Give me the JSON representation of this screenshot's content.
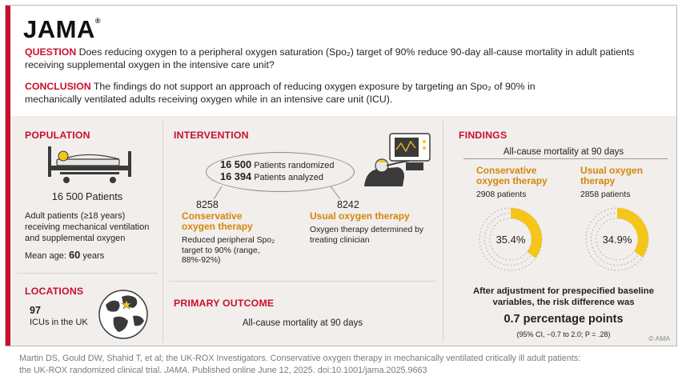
{
  "brand": {
    "logo": "JAMA",
    "trademark": "®"
  },
  "question": {
    "label": "QUESTION",
    "text": "Does reducing oxygen to a peripheral oxygen saturation (Spo₂) target of 90% reduce 90-day all-cause mortality in adult patients receiving supplemental oxygen in the intensive care unit?"
  },
  "conclusion": {
    "label": "CONCLUSION",
    "text": "The findings do not support an approach of reducing oxygen exposure by targeting an Spo₂ of 90% in mechanically ventilated adults receiving oxygen while in an intensive care unit (ICU)."
  },
  "population": {
    "heading": "POPULATION",
    "count": "16 500",
    "count_unit": "Patients",
    "description": "Adult patients (≥18 years) receiving mechanical ventilation and supplemental oxygen",
    "mean_age_label": "Mean age:",
    "mean_age_value": "60",
    "mean_age_unit": "years"
  },
  "locations": {
    "heading": "LOCATIONS",
    "count": "97",
    "text": "ICUs in the UK"
  },
  "intervention": {
    "heading": "INTERVENTION",
    "randomized_count": "16 500",
    "randomized_label": "Patients randomized",
    "analyzed_count": "16 394",
    "analyzed_label": "Patients analyzed",
    "conservative": {
      "count": "8258",
      "name": "Conservative oxygen therapy",
      "desc": "Reduced peripheral Spo₂ target to 90% (range, 88%-92%)"
    },
    "usual": {
      "count": "8242",
      "name": "Usual oxygen therapy",
      "desc": "Oxygen therapy determined by treating clinician"
    }
  },
  "primary_outcome": {
    "heading": "PRIMARY OUTCOME",
    "text": "All-cause mortality at 90 days"
  },
  "findings": {
    "heading": "FINDINGS",
    "subtitle": "All-cause mortality at 90 days",
    "summary": "After adjustment for prespecified baseline variables, the risk difference was",
    "effect": "0.7 percentage points",
    "ci": "(95% CI, −0.7 to 2.0; P = .28)"
  },
  "chart_data": {
    "type": "pie",
    "title": "All-cause mortality at 90 days",
    "series": [
      {
        "name": "Conservative oxygen therapy",
        "patients": "2908 patients",
        "value": 35.4,
        "label": "35.4%"
      },
      {
        "name": "Usual oxygen therapy",
        "patients": "2858 patients",
        "value": 34.9,
        "label": "34.9%"
      }
    ],
    "colors": {
      "filled": "#f5c518",
      "remainder": "#b5b5b5"
    }
  },
  "copyright": "© AMA",
  "citation": {
    "line1": "Martin DS, Gould DW, Shahid T, et al; the UK-ROX Investigators. Conservative oxygen therapy in mechanically ventilated critically ill adult patients:",
    "line2_pre": "the UK-ROX randomized clinical trial.",
    "journal": "JAMA",
    "line2_post": ". Published online June 12, 2025. doi:10.1001/jama.2025.9663"
  },
  "colors": {
    "accent": "#c8102e",
    "gold": "#d4860b",
    "panel_bg": "#f1eeeb"
  }
}
